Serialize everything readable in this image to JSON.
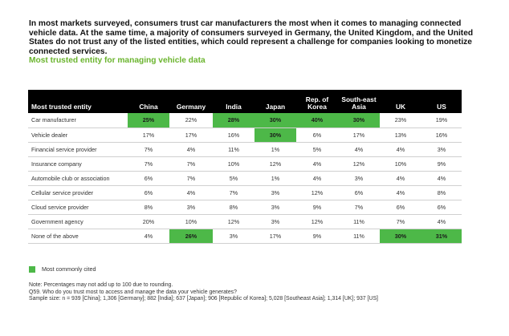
{
  "intro": "In most markets surveyed, consumers trust car manufacturers the most when it comes to managing connected vehicle data. At the same time, a majority of consumers surveyed in Germany, the United Kingdom, and the United States do not trust any of the listed entities, which could represent a challenge for companies looking to monetize connected services.",
  "subtitle": "Most trusted entity for managing vehicle data",
  "table": {
    "header_first": "Most trusted entity",
    "columns": [
      "China",
      "Germany",
      "India",
      "Japan",
      "Rep. of Korea",
      "South-east Asia",
      "UK",
      "US"
    ],
    "rows": [
      {
        "label": "Car manufacturer",
        "values": [
          "25%",
          "22%",
          "28%",
          "30%",
          "40%",
          "30%",
          "23%",
          "19%"
        ],
        "hl": [
          0,
          2,
          3,
          4,
          5
        ]
      },
      {
        "label": "Vehicle dealer",
        "values": [
          "17%",
          "17%",
          "16%",
          "30%",
          "6%",
          "17%",
          "13%",
          "16%"
        ],
        "hl": [
          3
        ]
      },
      {
        "label": "Financial service provider",
        "values": [
          "7%",
          "4%",
          "11%",
          "1%",
          "5%",
          "4%",
          "4%",
          "3%"
        ],
        "hl": []
      },
      {
        "label": "Insurance company",
        "values": [
          "7%",
          "7%",
          "10%",
          "12%",
          "4%",
          "12%",
          "10%",
          "9%"
        ],
        "hl": []
      },
      {
        "label": "Automobile club or association",
        "values": [
          "6%",
          "7%",
          "5%",
          "1%",
          "4%",
          "3%",
          "4%",
          "4%"
        ],
        "hl": []
      },
      {
        "label": "Cellular service provider",
        "values": [
          "6%",
          "4%",
          "7%",
          "3%",
          "12%",
          "6%",
          "4%",
          "8%"
        ],
        "hl": []
      },
      {
        "label": "Cloud service provider",
        "values": [
          "8%",
          "3%",
          "8%",
          "3%",
          "9%",
          "7%",
          "6%",
          "6%"
        ],
        "hl": []
      },
      {
        "label": "Government agency",
        "values": [
          "20%",
          "10%",
          "12%",
          "3%",
          "12%",
          "11%",
          "7%",
          "4%"
        ],
        "hl": []
      },
      {
        "label": "None of the above",
        "values": [
          "4%",
          "26%",
          "3%",
          "17%",
          "9%",
          "11%",
          "30%",
          "31%"
        ],
        "hl": [
          1,
          6,
          7
        ]
      }
    ]
  },
  "legend_label": "Most commonly cited",
  "highlight_color": "#4db848",
  "accent_color": "#6ab42d",
  "notes": [
    "Note: Percentages may not add up to 100 due to rounding.",
    "Q59. Who do you trust most to access and manage the data your vehicle generates?",
    "Sample size: n = 939 [China]; 1,306 [Germany]; 882 [India]; 637 [Japan]; 906 [Republic of Korea]; 5,028 [Southeast Asia]; 1,314 [UK]; 937 [US]"
  ]
}
